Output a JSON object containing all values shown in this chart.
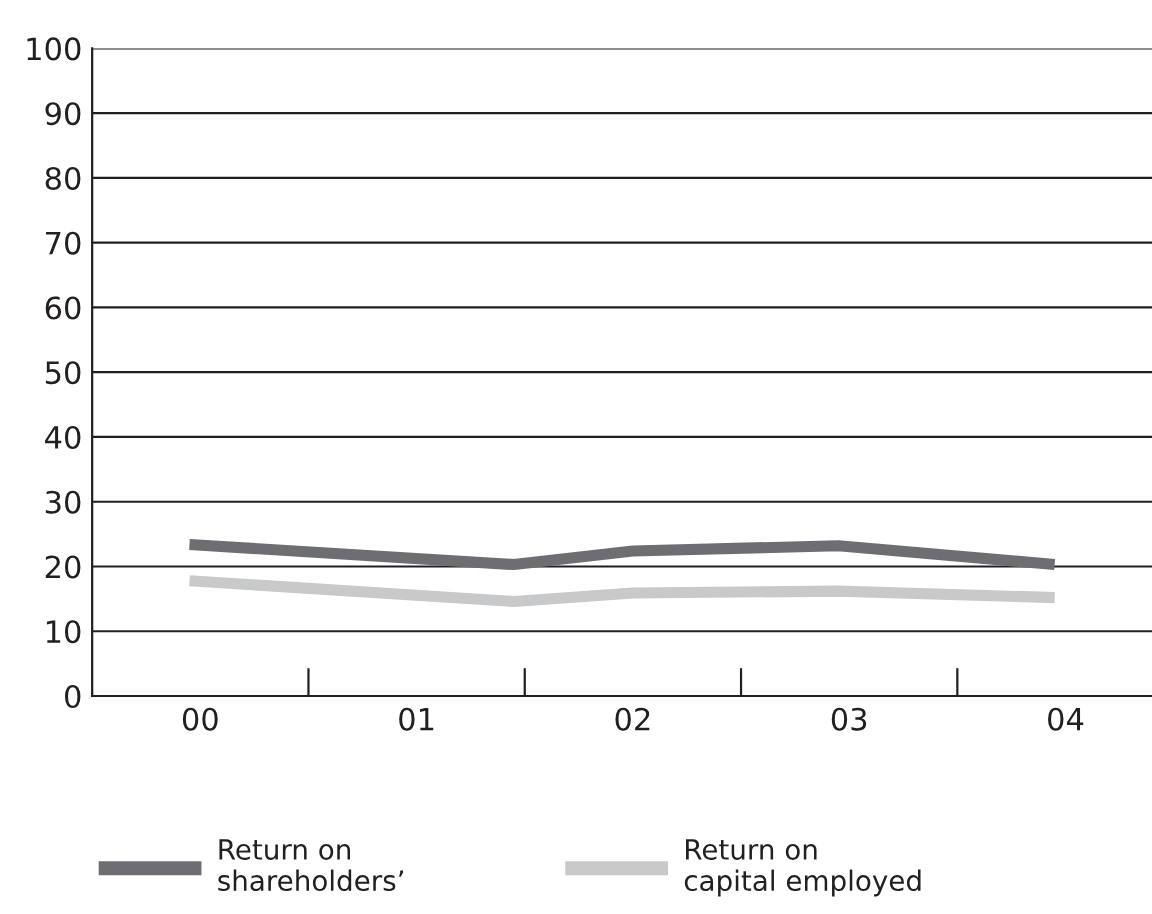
{
  "chart_data": {
    "type": "line",
    "x": [
      -0.05,
      1.45,
      2,
      2.95,
      3.95
    ],
    "xlim": [
      -0.5,
      4.4
    ],
    "xticks": [
      {
        "value": 0,
        "label": "00"
      },
      {
        "value": 0.5,
        "label": null
      },
      {
        "value": 1,
        "label": "01"
      },
      {
        "value": 1.5,
        "label": null
      },
      {
        "value": 2,
        "label": "02"
      },
      {
        "value": 2.5,
        "label": null
      },
      {
        "value": 3,
        "label": "03"
      },
      {
        "value": 3.5,
        "label": null
      },
      {
        "value": 4,
        "label": "04"
      }
    ],
    "ylim": [
      0,
      100
    ],
    "yticks": [
      0,
      10,
      20,
      30,
      40,
      50,
      60,
      70,
      80,
      90,
      100
    ],
    "grid": "y",
    "legend": "bottom",
    "marker": "none",
    "line_style": "solid",
    "series": [
      {
        "name": "Return on\nshareholders’",
        "color": "#6d6e71",
        "values": [
          23.4,
          20.3,
          22.4,
          23.2,
          20.3
        ]
      },
      {
        "name": "Return on\ncapital employed",
        "color": "#c8c9ca",
        "values": [
          17.8,
          14.6,
          15.9,
          16.2,
          15.2
        ]
      }
    ]
  }
}
